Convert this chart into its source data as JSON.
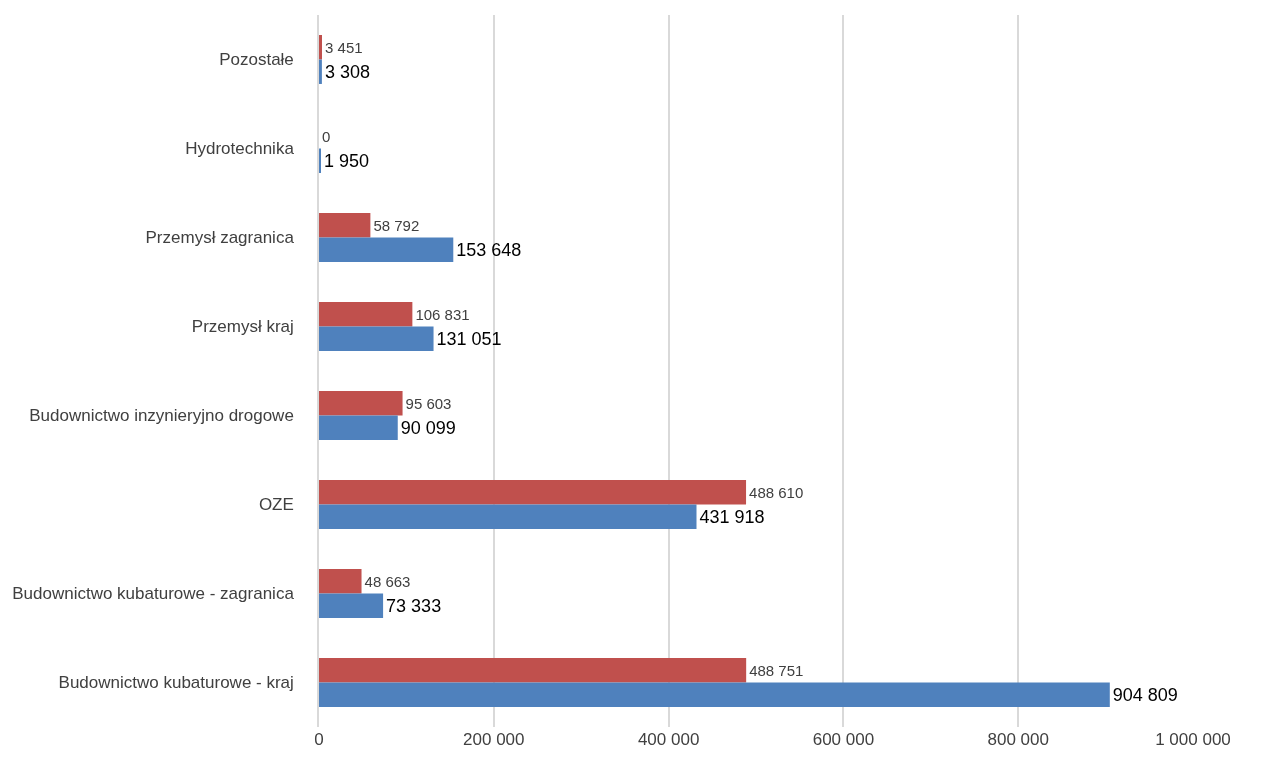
{
  "chart_data": {
    "type": "bar",
    "orientation": "horizontal",
    "categories": [
      "Pozostałe",
      "Hydrotechnika",
      "Przemysł zagranica",
      "Przemysł kraj",
      "Budownictwo inzynieryjno drogowe",
      "OZE",
      "Budownictwo kubaturowe - zagranica",
      "Budownictwo kubaturowe - kraj"
    ],
    "series": [
      {
        "color": "#c0504d",
        "values": [
          3451,
          0,
          58792,
          106831,
          95603,
          488610,
          48663,
          488751
        ],
        "value_labels": [
          "3 451",
          "0",
          "58 792",
          "106 831",
          "95 603",
          "488 610",
          "48 663",
          "488 751"
        ]
      },
      {
        "color": "#4f81bd",
        "values": [
          3308,
          1950,
          153648,
          131051,
          90099,
          431918,
          73333,
          904809
        ],
        "value_labels": [
          "3 308",
          "1 950",
          "153 648",
          "131 051",
          "90 099",
          "431 918",
          "73 333",
          "904 809"
        ]
      }
    ],
    "xlim": [
      0,
      1000000
    ],
    "xticks": [
      {
        "value": 0,
        "label": "0"
      },
      {
        "value": 200000,
        "label": "200 000"
      },
      {
        "value": 400000,
        "label": "400 000"
      },
      {
        "value": 600000,
        "label": "600 000"
      },
      {
        "value": 800000,
        "label": "800 000"
      },
      {
        "value": 1000000,
        "label": "1 000 000"
      }
    ],
    "grid": "x"
  }
}
